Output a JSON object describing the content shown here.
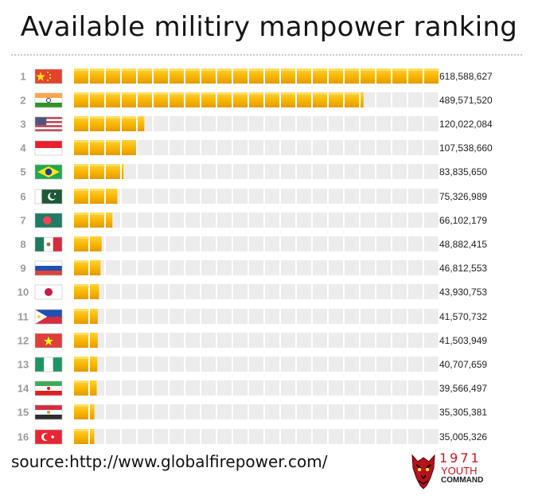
{
  "title": "Available militiry manpower ranking",
  "source": "source:http://www.globalfirepower.com/",
  "logo": {
    "number": "1971",
    "line1": "YOUTH",
    "line2": "COMMAND",
    "tagline": ""
  },
  "colors": {
    "bar_fill": "#f7b500",
    "bar_empty": "#ececec",
    "rank_text": "#9a9a9a"
  },
  "chart_data": {
    "type": "bar",
    "orientation": "horizontal",
    "title": "Available militiry manpower ranking",
    "xlabel": "",
    "ylabel": "",
    "grid": false,
    "scale_max": 618588627,
    "segments_total": 23,
    "ranks": [
      "1",
      "2",
      "3",
      "4",
      "5",
      "6",
      "7",
      "8",
      "9",
      "10",
      "11",
      "12",
      "13",
      "14",
      "15",
      "16"
    ],
    "flags": [
      "china",
      "india",
      "usa",
      "indonesia",
      "brazil",
      "pakistan",
      "bangladesh",
      "mexico",
      "russia",
      "japan",
      "philippines",
      "vietnam",
      "nigeria",
      "iran",
      "egypt",
      "turkey"
    ],
    "values": [
      618588627,
      489571520,
      120022084,
      107538660,
      83835650,
      75326989,
      66102179,
      48882415,
      46812553,
      43930753,
      41570732,
      41503949,
      40707659,
      39566497,
      35305381,
      35005326
    ],
    "labels": [
      "618,588,627",
      "489,571,520",
      "120,022,084",
      "107,538,660",
      "83,835,650",
      "75,326,989",
      "66,102,179",
      "48,882,415",
      "46,812,553",
      "43,930,753",
      "41,570,732",
      "41,503,949",
      "40,707,659",
      "39,566,497",
      "35,305,381",
      "35,005,326"
    ]
  }
}
